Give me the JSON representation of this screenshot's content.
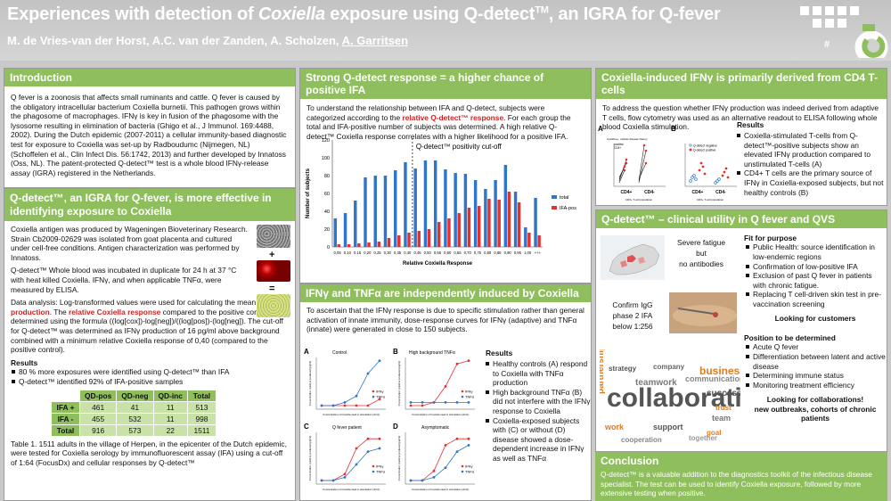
{
  "header": {
    "title_pre": "Experiences with detection of ",
    "title_em": "Coxiella",
    "title_mid": " exposure using Q-detect",
    "title_sup": "TM",
    "title_post": ", an IGRA for Q-fever",
    "authors": "M. de Vries-van der Horst, A.C. van der Zanden, A. Scholzen, ",
    "author_last": "A. Garritsen",
    "hash": "#"
  },
  "intro": {
    "heading": "Introduction",
    "text": "Q fever is a zoonosis that affects small ruminants  and cattle. Q fever is caused by  the obligatory intracellular bacterium Coxiella burnetii. This pathogen grows within the phagosome of macrophages. IFNγ is key in fusion of the phagosome with the lysosome resulting in elimination of bacteria (Ghigo et al., J Immunol. 169:4488, 2002). During the Dutch epidemic (2007-2011) a cellular immunity-based diagnostic test for exposure to Coxiella was set-up by Radboudumc (Nijmegen, NL) (Schoffelen et al., Clin Infect Dis. 56:1742, 2013) and further developed by Innatoss (Oss, NL). The patent-protected Q-detect™ test is a whole blood  IFNγ-release assay (IGRA) registered in the Netherlands."
  },
  "igra": {
    "heading": "Q-detect™, an IGRA for Q-fever,  is more effective in identifying exposure to Coxiella",
    "antigen": "Coxiella antigen was  produced by Wageningen Bioveterinary Research. Strain Cb2009-02629 was isolated from goat placenta and cultured under cell-free conditions. Antigen characterization was performed by Innatoss.",
    "incub": "Q-detect™ Whole blood was incubated in duplicate for 24 h at 37 °C with heat killed Coxiella. IFNγ, and  when applicable TNFα, were measured by ELISA.",
    "analysis_pre": "Data analysis: Log-transformed values were used for calculating the mean ",
    "analysis_red1": "IFNγ production",
    "analysis_mid": ". The ",
    "analysis_red2": "relative Coxiella response",
    "analysis_post": " compared to the positive control was determined using the formula ((log[cox])-log[neg])/((log[pos])-(log[neg]). The cut-off for Q-detect™ was determined as IFNγ production of 16 pg/ml above background combined with a minimum relative Coxiella response of 0,40 (compared to the positive control).",
    "results_h": "Results",
    "results": [
      "80 % more exposures were identified using Q-detect™ than IFA",
      "Q-detect™ identified 92% of IFA-positive samples"
    ],
    "plus": "+",
    "eq": "=",
    "table": {
      "headers": [
        "",
        "QD-pos",
        "QD-neg",
        "QD-inc",
        "Total"
      ],
      "rows": [
        [
          "IFA +",
          "461",
          "41",
          "11",
          "513"
        ],
        [
          "IFA -",
          "455",
          "532",
          "11",
          "998"
        ],
        [
          "Total",
          "916",
          "573",
          "22",
          "1511"
        ]
      ]
    },
    "caption": "Table 1. 1511 adults in the village of Herpen, in the epicenter of the Dutch epidemic,  were tested for Coxiella serology by immunofluorescent assay (IFA) using a cut-off of 1:64 (FocusDx) and cellular responses by Q-detect™"
  },
  "strong": {
    "heading": "Strong Q-detect response = a higher chance of positive IFA",
    "text_pre": "To understand the relationship between IFA and Q-detect, subjects were categorized according to the ",
    "text_red": "relative Q-detect™ response",
    "text_post": ". For each group the total and IFA-positive number of subjects was determined.  A high relative Q-detect™ Coxiella response correlates with a higher likelihood for a positive IFA."
  },
  "chart_data": {
    "type": "bar",
    "categories": [
      "0,05",
      "0,10",
      "0,15",
      "0,20",
      "0,25",
      "0,30",
      "0,35",
      "0,40",
      "0,45",
      "0,50",
      "0,55",
      "0,60",
      "0,65",
      "0,70",
      "0,75",
      "0,80",
      "0,85",
      "0,90",
      "0,95",
      "1,00",
      "+++"
    ],
    "series": [
      {
        "name": "total",
        "values": [
          32,
          38,
          52,
          78,
          80,
          80,
          86,
          95,
          88,
          97,
          97,
          87,
          83,
          82,
          75,
          65,
          75,
          92,
          62,
          22,
          55
        ]
      },
      {
        "name": "IFA-pos",
        "values": [
          3,
          3,
          4,
          5,
          6,
          10,
          13,
          16,
          18,
          20,
          28,
          32,
          38,
          44,
          46,
          54,
          53,
          62,
          50,
          16,
          13
        ]
      }
    ],
    "title": "",
    "xlabel": "Relative Coxiella Response",
    "ylabel": "Number of subjects",
    "ylim": [
      0,
      120
    ],
    "yticks": [
      "0",
      "20",
      "40",
      "60",
      "80",
      "100",
      "120"
    ],
    "cutoff_label": "Q-detect™ positivity cut-off",
    "cutoff_after": "0,40",
    "legend": "right",
    "colors": {
      "total": "#2f76c8",
      "IFA-pos": "#e53030"
    }
  },
  "tnf": {
    "heading": "IFNγ and TNFα are independently induced by Coxiella",
    "text": "To ascertain that the IFNγ response is due to specific stimulation rather than general activation of innate immunity, dose-response curves for IFNγ (adaptive) and TNFα (innate) were generated in close to 150 subjects.",
    "panels": [
      {
        "letter": "A",
        "title": "Control"
      },
      {
        "letter": "B",
        "title": "High background TNFα"
      },
      {
        "letter": "C",
        "title": "Q fever patient"
      },
      {
        "letter": "D",
        "title": "Asymptomatic"
      }
    ],
    "legend": [
      "IFNγ",
      "TNFα"
    ],
    "axis_x": "Concentration of Coxiella used in stimulation (ul/ml)",
    "axis_y": "Concentration cytokine produced (pg/ml)",
    "results_h": "Results",
    "results": [
      "Healthy controls (A) respond to Coxiella with TNFα production",
      "High background TNFα (B) did not interfere with the IFNγ response to Coxiella",
      "Coxiella-exposed subjects with (C) or without (D) disease showed a dose-dependent increase in IFNγ as well as TNFα"
    ]
  },
  "cd4": {
    "heading": "Coxiella-induced IFNγ is primarily derived from CD4 T-cells",
    "text": "To address the question whether IFNγ production was indeed derived from adaptive T cells, flow cytometry was used as an alternative readout to ELISA following whole blood Coxiella stimulation.",
    "panelA": "A",
    "panelB": "B",
    "a_title": "Cytokine+, cellular disease history",
    "a_leg": [
      "positive",
      "CD4+"
    ],
    "b_leg": [
      "Q-detect negative",
      "Q-detect positive"
    ],
    "xlabs": [
      "CD4+",
      "CD4-"
    ],
    "xcap": "CD3+ T-cell population",
    "results_h": "Results",
    "results": [
      "Coxiella-stimulated T-cells from Q-detect™-positive subjects show an elevated IFNγ production compared to unstimulated T-cells (A)",
      "CD4+ T cells are the primary source of IFNγ in Coxiella-exposed subjects, but not healthy controls (B)"
    ]
  },
  "clinical": {
    "heading": "Q-detect™ – clinical utility in Q fever and QVS",
    "box1": "Severe fatigue\nbut\nno antibodies",
    "box2": "Confirm IgG\nphase 2 IFA\nbelow 1:256",
    "fit_h": "Fit for purpose",
    "fit": [
      "Public Health: source identification in low-endemic regions",
      "Confirmation of low-positive IFA",
      "Exclusion of past Q fever in patients with chronic fatigue.",
      "Replacing T cell-driven skin test in pre-vaccination screening"
    ],
    "looking1": "Looking for customers",
    "pos_h": "Position to be determined",
    "pos": [
      "Acute Q fever",
      "Differentiation between latent and active disease",
      "Determining immune status",
      "Monitoring treatment efficiency"
    ],
    "looking2": "Looking for collaborations!\nnew outbreaks, cohorts of chronic patients",
    "words": [
      "collaboration",
      "business",
      "teamwork",
      "partnership",
      "success",
      "communication",
      "work",
      "support",
      "team",
      "together",
      "trust",
      "company",
      "strategy",
      "cooperation",
      "goal"
    ]
  },
  "conclusion": {
    "heading": "Conclusion",
    "text": "Q-detect™  is a valuable addition to the diagnostics toolkit of the infectious disease specialist. The test can be used to identify Coxiella exposure, followed by more extensive testing when positive."
  }
}
